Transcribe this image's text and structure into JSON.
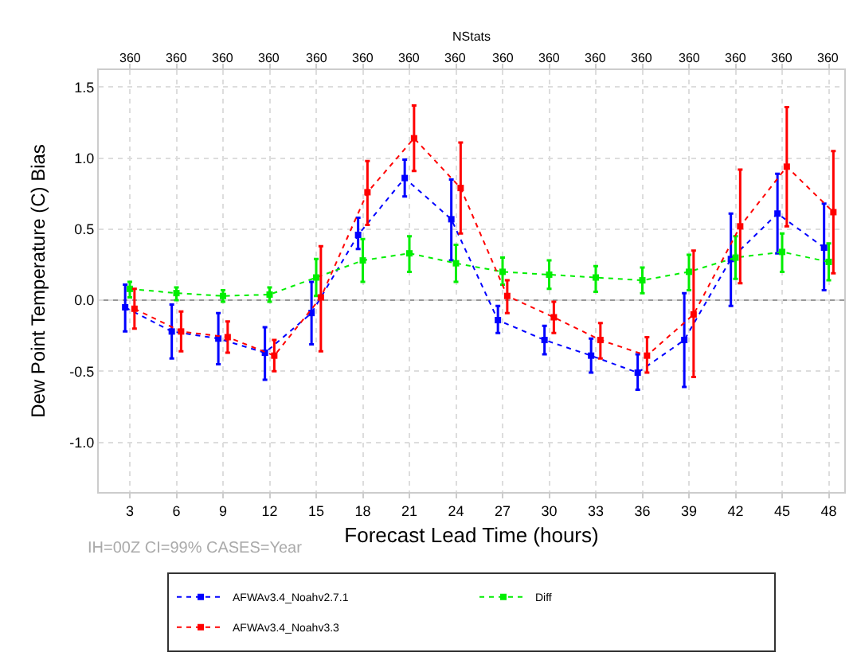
{
  "chart_data": {
    "type": "line",
    "xlabel": "Forecast Lead Time (hours)",
    "ylabel": "Dew Point Temperature (C) Bias",
    "x2label": "NStats",
    "xlim": [
      1,
      49
    ],
    "xticks": [
      3,
      6,
      9,
      12,
      15,
      18,
      21,
      24,
      27,
      30,
      33,
      36,
      39,
      42,
      45,
      48
    ],
    "ylim": [
      -1.35,
      1.62
    ],
    "yticks": [
      {
        "value": -1,
        "label": "-1.0"
      },
      {
        "value": -0.5,
        "label": "-0.5"
      },
      {
        "value": 0,
        "label": "0.0"
      },
      {
        "value": 0.5,
        "label": "0.5"
      },
      {
        "value": 1,
        "label": "1.0"
      },
      {
        "value": 1.5,
        "label": "1.5"
      }
    ],
    "grid": true,
    "legend": "bottom",
    "marker": "square",
    "line_style": "dotted",
    "ref_lines": [
      {
        "axis": "y",
        "value": 0,
        "color": "#999999",
        "line_style": "solid"
      }
    ],
    "annotations": [
      "IH=00Z CI=99% CASES=Year",
      "360",
      "360",
      "360",
      "360",
      "360",
      "360",
      "360",
      "360",
      "360",
      "360",
      "360",
      "360",
      "360",
      "360",
      "360",
      "360"
    ],
    "series": [
      {
        "name": "AFWAv3.4_Noahv2.7.1",
        "color": "#0000ff",
        "x": [
          2.7,
          5.7,
          8.7,
          11.7,
          14.7,
          17.7,
          20.7,
          23.7,
          26.7,
          29.7,
          32.7,
          35.7,
          38.7,
          41.7,
          44.7,
          47.7
        ],
        "values": [
          -0.05,
          -0.22,
          -0.27,
          -0.37,
          -0.09,
          0.46,
          0.86,
          0.57,
          -0.14,
          -0.28,
          -0.39,
          -0.51,
          -0.28,
          0.29,
          0.61,
          0.37
        ],
        "errors": [
          [
            -0.22,
            0.11
          ],
          [
            -0.41,
            -0.03
          ],
          [
            -0.45,
            -0.09
          ],
          [
            -0.56,
            -0.19
          ],
          [
            -0.31,
            0.13
          ],
          [
            0.36,
            0.58
          ],
          [
            0.73,
            0.99
          ],
          [
            0.28,
            0.85
          ],
          [
            -0.23,
            -0.04
          ],
          [
            -0.38,
            -0.18
          ],
          [
            -0.51,
            -0.27
          ],
          [
            -0.63,
            -0.38
          ],
          [
            -0.61,
            0.05
          ],
          [
            -0.04,
            0.61
          ],
          [
            0.33,
            0.89
          ],
          [
            0.07,
            0.68
          ]
        ]
      },
      {
        "name": "Diff",
        "color": "#00ee00",
        "x": [
          3,
          6,
          9,
          12,
          15,
          18,
          21,
          24,
          27,
          30,
          33,
          36,
          39,
          42,
          45,
          48
        ],
        "values": [
          0.08,
          0.05,
          0.03,
          0.04,
          0.16,
          0.28,
          0.33,
          0.26,
          0.2,
          0.18,
          0.16,
          0.14,
          0.2,
          0.3,
          0.34,
          0.27
        ],
        "errors": [
          [
            0.02,
            0.13
          ],
          [
            0,
            0.09
          ],
          [
            -0.01,
            0.07
          ],
          [
            -0.01,
            0.09
          ],
          [
            0.03,
            0.29
          ],
          [
            0.13,
            0.43
          ],
          [
            0.2,
            0.45
          ],
          [
            0.13,
            0.39
          ],
          [
            0.11,
            0.3
          ],
          [
            0.08,
            0.28
          ],
          [
            0.06,
            0.24
          ],
          [
            0.05,
            0.23
          ],
          [
            0.07,
            0.32
          ],
          [
            0.15,
            0.45
          ],
          [
            0.2,
            0.47
          ],
          [
            0.14,
            0.4
          ]
        ]
      },
      {
        "name": "AFWAv3.4_Noahv3.3",
        "color": "#ff0000",
        "x": [
          3.3,
          6.3,
          9.3,
          12.3,
          15.3,
          18.3,
          21.3,
          24.3,
          27.3,
          30.3,
          33.3,
          36.3,
          39.3,
          42.3,
          45.3,
          48.3
        ],
        "values": [
          -0.06,
          -0.22,
          -0.26,
          -0.39,
          0.02,
          0.76,
          1.14,
          0.79,
          0.03,
          -0.12,
          -0.28,
          -0.39,
          -0.1,
          0.52,
          0.94,
          0.62
        ],
        "errors": [
          [
            -0.2,
            0.08
          ],
          [
            -0.36,
            -0.08
          ],
          [
            -0.37,
            -0.15
          ],
          [
            -0.5,
            -0.28
          ],
          [
            -0.36,
            0.38
          ],
          [
            0.53,
            0.98
          ],
          [
            0.91,
            1.37
          ],
          [
            0.47,
            1.11
          ],
          [
            -0.09,
            0.14
          ],
          [
            -0.23,
            -0.01
          ],
          [
            -0.41,
            -0.16
          ],
          [
            -0.51,
            -0.26
          ],
          [
            -0.54,
            0.35
          ],
          [
            0.12,
            0.92
          ],
          [
            0.52,
            1.36
          ],
          [
            0.19,
            1.05
          ]
        ]
      }
    ]
  }
}
